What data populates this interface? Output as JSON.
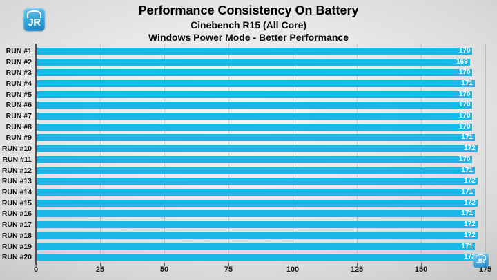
{
  "logo": {
    "text": "JR"
  },
  "watermark": {
    "text": "JR"
  },
  "chart_data": {
    "type": "bar",
    "orientation": "horizontal",
    "title": "Performance Consistency On Battery",
    "subtitle": "Cinebench R15 (All Core)",
    "subtitle2": "Windows Power Mode - Better Performance",
    "categories": [
      "RUN #1",
      "RUN #2",
      "RUN #3",
      "RUN #4",
      "RUN #5",
      "RUN #6",
      "RUN #7",
      "RUN #8",
      "RUN #9",
      "RUN #10",
      "RUN #11",
      "RUN #12",
      "RUN #13",
      "RUN #14",
      "RUN #15",
      "RUN #16",
      "RUN #17",
      "RUN #18",
      "RUN #19",
      "RUN #20"
    ],
    "values": [
      170,
      169,
      170,
      171,
      170,
      170,
      170,
      170,
      171,
      172,
      170,
      171,
      172,
      171,
      172,
      171,
      172,
      172,
      171,
      172
    ],
    "xlabel": "",
    "ylabel": "",
    "xlim": [
      0,
      175
    ],
    "x_ticks": [
      0,
      25,
      50,
      75,
      100,
      125,
      150,
      175
    ],
    "grid": true,
    "legend": "none",
    "bar_color": "#19b8e8",
    "value_label_color": "#ffffff",
    "value_labels_position": "inside-end"
  }
}
